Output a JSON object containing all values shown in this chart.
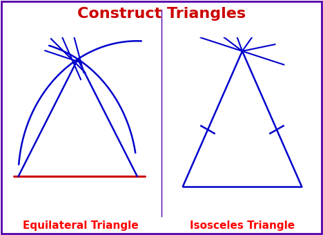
{
  "title": "Construct Triangles",
  "title_color": "#cc0000",
  "title_fontsize": 16,
  "label_left": "Equilateral Triangle",
  "label_right": "Isosceles Triangle",
  "label_color": "#ff0000",
  "label_fontsize": 11,
  "line_color": "#0000cc",
  "red_color": "#cc0000",
  "bg_color": "#ffffff",
  "border_color": "#5500aa"
}
